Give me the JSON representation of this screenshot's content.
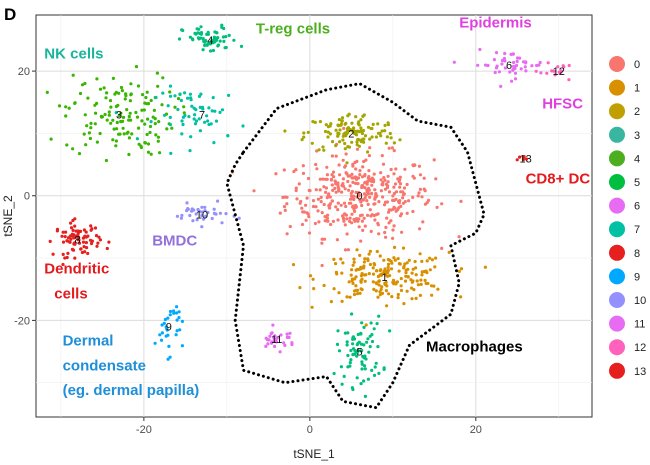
{
  "panel_letter": "D",
  "chart_data": {
    "type": "scatter",
    "title": "",
    "xlabel": "tSNE_1",
    "ylabel": "tSNE_2",
    "xlim": [
      -33,
      34
    ],
    "ylim": [
      -35.5,
      29
    ],
    "xticks": [
      -20,
      0,
      20
    ],
    "yticks": [
      -20,
      0,
      20
    ],
    "grid": true,
    "legend_position": "right",
    "clusters": [
      {
        "id": "0",
        "color": "#F8766D",
        "center": [
          6,
          0
        ],
        "spread": [
          8,
          6
        ],
        "n": 380
      },
      {
        "id": "1",
        "color": "#D89000",
        "center": [
          9,
          -13
        ],
        "spread": [
          7,
          3.5
        ],
        "n": 200
      },
      {
        "id": "2",
        "color": "#A3A500",
        "center": [
          5,
          10
        ],
        "spread": [
          5,
          3
        ],
        "n": 120
      },
      {
        "id": "3",
        "color": "#39B600",
        "center": [
          -23,
          13
        ],
        "spread": [
          6,
          6
        ],
        "n": 140
      },
      {
        "id": "4",
        "color": "#00BF7D",
        "center": [
          -12,
          25
        ],
        "spread": [
          3,
          2
        ],
        "n": 60
      },
      {
        "id": "5",
        "color": "#00BF7D",
        "center": [
          6,
          -25
        ],
        "spread": [
          2.5,
          5
        ],
        "n": 80
      },
      {
        "id": "6",
        "color": "#E76BF3",
        "center": [
          24,
          21
        ],
        "spread": [
          4,
          2
        ],
        "n": 45
      },
      {
        "id": "7",
        "color": "#00C1A3",
        "center": [
          -13,
          13
        ],
        "spread": [
          5,
          4
        ],
        "n": 60
      },
      {
        "id": "8",
        "color": "#E6201F",
        "center": [
          -28,
          -7
        ],
        "spread": [
          2.5,
          2.5
        ],
        "n": 80
      },
      {
        "id": "9",
        "color": "#00A9FF",
        "center": [
          -17,
          -21
        ],
        "spread": [
          1.5,
          4
        ],
        "n": 30
      },
      {
        "id": "10",
        "color": "#9590FF",
        "center": [
          -13,
          -3
        ],
        "spread": [
          3,
          1.5
        ],
        "n": 35
      },
      {
        "id": "11",
        "color": "#E76BF3",
        "center": [
          -4,
          -23
        ],
        "spread": [
          2,
          1.5
        ],
        "n": 30
      },
      {
        "id": "12",
        "color": "#FF62BC",
        "center": [
          30,
          20
        ],
        "spread": [
          2,
          1
        ],
        "n": 15
      },
      {
        "id": "13",
        "color": "#E6201F",
        "center": [
          26,
          6
        ],
        "spread": [
          0.7,
          0.7
        ],
        "n": 6
      }
    ],
    "annotations": [
      {
        "text": "T-reg cells",
        "color": "#4DAF1F",
        "x": -6.5,
        "y": 26
      },
      {
        "text": "NK cells",
        "color": "#19B59B",
        "x": -32,
        "y": 22
      },
      {
        "text": "Epidermis",
        "color": "#E040E0",
        "x": 18,
        "y": 27
      },
      {
        "text": "HFSC",
        "color": "#E040E0",
        "x": 28,
        "y": 14
      },
      {
        "text": "CD8+ DC",
        "color": "#E41A1C",
        "x": 26,
        "y": 2
      },
      {
        "text": "BMDC",
        "color": "#9370DB",
        "x": -19,
        "y": -8
      },
      {
        "text": "Dendritic",
        "color": "#E41A1C",
        "x": -32,
        "y": -12.5
      },
      {
        "text": "cells",
        "color": "#E41A1C",
        "x": -30.8,
        "y": -16.5
      },
      {
        "text": "Dermal",
        "color": "#1E8FD8",
        "x": -29.8,
        "y": -24
      },
      {
        "text": "condensate",
        "color": "#1E8FD8",
        "x": -29.8,
        "y": -28
      },
      {
        "text": "(eg. dermal papilla)",
        "color": "#1E8FD8",
        "x": -29.8,
        "y": -32
      },
      {
        "text": "Macrophages",
        "color": "#000000",
        "x": 14,
        "y": -25
      }
    ],
    "legend": [
      {
        "label": "0",
        "color": "#F8766D"
      },
      {
        "label": "1",
        "color": "#D89000"
      },
      {
        "label": "2",
        "color": "#C0A000"
      },
      {
        "label": "3",
        "color": "#39B6A0"
      },
      {
        "label": "4",
        "color": "#4DAF1F"
      },
      {
        "label": "5",
        "color": "#00BF40"
      },
      {
        "label": "6",
        "color": "#E76BF3"
      },
      {
        "label": "7",
        "color": "#00C1A3"
      },
      {
        "label": "8",
        "color": "#E6201F"
      },
      {
        "label": "9",
        "color": "#00A9FF"
      },
      {
        "label": "10",
        "color": "#9590FF"
      },
      {
        "label": "11",
        "color": "#E76BF3"
      },
      {
        "label": "12",
        "color": "#FF62BC"
      },
      {
        "label": "13",
        "color": "#E6201F"
      }
    ],
    "macrophage_outline": [
      [
        -8,
        7
      ],
      [
        -4,
        14
      ],
      [
        2,
        17
      ],
      [
        6,
        18
      ],
      [
        10,
        15
      ],
      [
        13,
        12
      ],
      [
        17,
        11
      ],
      [
        19,
        7
      ],
      [
        20,
        2
      ],
      [
        21,
        -3
      ],
      [
        20,
        -6
      ],
      [
        17,
        -8
      ],
      [
        18,
        -14
      ],
      [
        17,
        -19
      ],
      [
        12,
        -24
      ],
      [
        10,
        -30
      ],
      [
        8,
        -34
      ],
      [
        4,
        -33
      ],
      [
        2,
        -29
      ],
      [
        -3,
        -30
      ],
      [
        -8,
        -28
      ],
      [
        -9,
        -20
      ],
      [
        -8,
        -8
      ],
      [
        -10,
        2
      ],
      [
        -9,
        5
      ],
      [
        -8,
        7
      ]
    ]
  }
}
